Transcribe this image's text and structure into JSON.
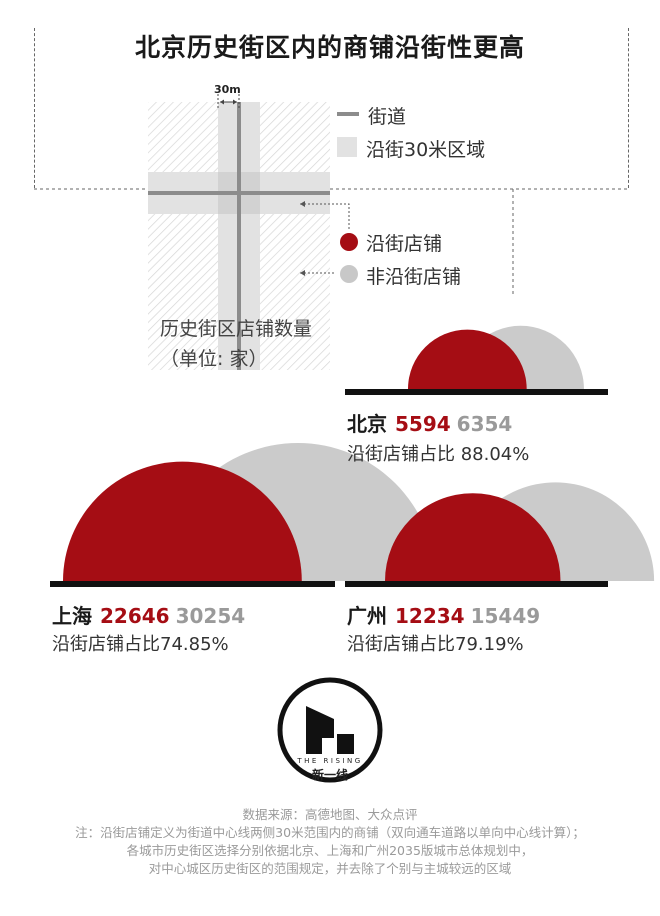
{
  "title": "北京历史街区内的商铺沿街性更高",
  "diagram": {
    "width_label": "30m",
    "legend": [
      {
        "name": "street",
        "label": "街道"
      },
      {
        "name": "zone",
        "label": "沿街30米区域"
      },
      {
        "name": "frontage-shop",
        "label": "沿街店铺",
        "color": "#a50d14"
      },
      {
        "name": "non-frontage-shop",
        "label": "非沿街店铺",
        "color": "#c8c8c8"
      }
    ]
  },
  "unit_label": {
    "line1": "历史街区店铺数量",
    "line2": "（单位: 家）"
  },
  "colors": {
    "frontage": "#a50d14",
    "total": "#cbcbcb",
    "baseline": "#111111"
  },
  "chart_data": {
    "type": "bar",
    "title": "北京历史街区内的商铺沿街性更高",
    "ylabel": "历史街区店铺数量（单位: 家）",
    "categories": [
      "北京",
      "上海",
      "广州"
    ],
    "series": [
      {
        "name": "沿街店铺",
        "values": [
          5594,
          22646,
          12234
        ]
      },
      {
        "name": "非沿街店铺",
        "values": [
          6354,
          30254,
          15449
        ]
      }
    ],
    "ratios": [
      "沿街店铺占比 88.04%",
      "沿街店铺占比74.85%",
      "沿街店铺占比79.19%"
    ]
  },
  "logo": {
    "caption": "THE RISING",
    "name": "新一线"
  },
  "footer": [
    "数据来源：高德地图、大众点评",
    "注：沿街店铺定义为街道中心线两侧30米范围内的商铺（双向通车道路以单向中心线计算）；",
    "各城市历史街区选择分别依据北京、上海和广州2035版城市总体规划中，",
    "对中心城区历史街区的范围规定，并去除了个别与主城较远的区域"
  ]
}
